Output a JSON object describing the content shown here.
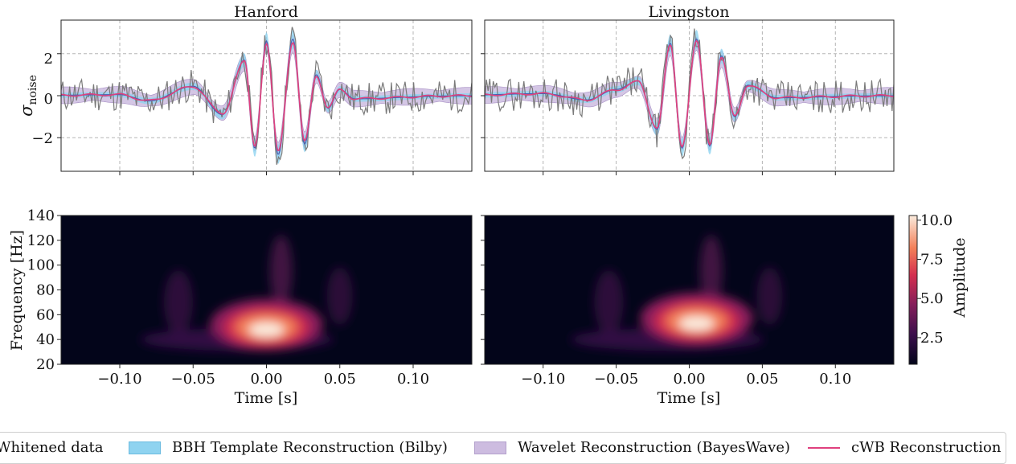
{
  "chart_data": [
    {
      "type": "line",
      "panel": "strain",
      "title": "Hanford",
      "ylabel": "σnoise",
      "xlim": [
        -0.14,
        0.14
      ],
      "ylim": [
        -3.6,
        3.6
      ],
      "yticks": [
        "2",
        "0",
        "−2"
      ],
      "grid": true,
      "peaks": [
        [
          -0.1,
          0.05
        ],
        [
          -0.08,
          -0.25
        ],
        [
          -0.05,
          0.45
        ],
        [
          -0.03,
          -0.9
        ],
        [
          -0.015,
          1.7
        ],
        [
          -0.008,
          -2.5
        ],
        [
          0.0,
          2.6
        ],
        [
          0.008,
          -2.8
        ],
        [
          0.018,
          2.7
        ],
        [
          0.026,
          -2.3
        ],
        [
          0.034,
          1.0
        ],
        [
          0.042,
          -0.6
        ],
        [
          0.05,
          0.3
        ],
        [
          0.06,
          -0.15
        ]
      ],
      "series": [
        {
          "name": "Whitened data"
        },
        {
          "name": "BBH Template Reconstruction (Bilby)"
        },
        {
          "name": "Wavelet Reconstruction (BayesWave)"
        },
        {
          "name": "cWB Reconstruction"
        }
      ]
    },
    {
      "type": "line",
      "panel": "strain",
      "title": "Livingston",
      "xlim": [
        -0.14,
        0.14
      ],
      "ylim": [
        -3.6,
        3.6
      ],
      "grid": true,
      "peaks": [
        [
          -0.1,
          0.1
        ],
        [
          -0.07,
          -0.2
        ],
        [
          -0.05,
          0.3
        ],
        [
          -0.035,
          0.7
        ],
        [
          -0.022,
          -1.6
        ],
        [
          -0.013,
          2.5
        ],
        [
          -0.005,
          -2.5
        ],
        [
          0.005,
          2.7
        ],
        [
          0.014,
          -2.4
        ],
        [
          0.022,
          1.9
        ],
        [
          0.031,
          -1.0
        ],
        [
          0.04,
          0.5
        ],
        [
          0.06,
          -0.1
        ]
      ],
      "series": [
        {
          "name": "Whitened data"
        },
        {
          "name": "BBH Template Reconstruction (Bilby)"
        },
        {
          "name": "Wavelet Reconstruction (BayesWave)"
        },
        {
          "name": "cWB Reconstruction"
        }
      ]
    },
    {
      "type": "heatmap",
      "panel": "spectrogram",
      "detector": "Hanford",
      "xlabel": "Time [s]",
      "ylabel": "Frequency [Hz]",
      "xlim": [
        -0.14,
        0.14
      ],
      "ylim": [
        20,
        140
      ],
      "xticks": [
        "−0.10",
        "−0.05",
        "0.00",
        "0.05",
        "0.10"
      ],
      "yticks": [
        "140",
        "120",
        "100",
        "80",
        "60",
        "40",
        "20"
      ],
      "peak": {
        "time": 0.0,
        "frequency": 50,
        "amplitude": 10.0
      }
    },
    {
      "type": "heatmap",
      "panel": "spectrogram",
      "detector": "Livingston",
      "xlabel": "Time [s]",
      "xlim": [
        -0.14,
        0.14
      ],
      "ylim": [
        20,
        140
      ],
      "xticks": [
        "−0.10",
        "−0.05",
        "0.00",
        "0.05",
        "0.10"
      ],
      "peak": {
        "time": 0.005,
        "frequency": 55,
        "amplitude": 10.0
      }
    }
  ],
  "colorbar": {
    "label": "Amplitude",
    "ticks": [
      "10.0",
      "7.5",
      "5.0",
      "2.5"
    ],
    "range": [
      0.8,
      10.3
    ]
  },
  "legend": {
    "placement": "bottom",
    "items": [
      {
        "label": "Whitened data",
        "color": "#7a7a7a",
        "kind": "line"
      },
      {
        "label": "BBH Template Reconstruction (Bilby)",
        "color": "#8fd3f0",
        "kind": "fill"
      },
      {
        "label": "Wavelet Reconstruction (BayesWave)",
        "color": "#cdbce0",
        "kind": "fill"
      },
      {
        "label": "cWB Reconstruction",
        "color": "#e0407e",
        "kind": "line"
      }
    ]
  },
  "colors": {
    "whitened": "#7a7a7a",
    "bilby": "#8fd3f0",
    "bayeswave": "#cdbce0",
    "cwb": "#e0407e",
    "grid": "#b5b5b5"
  }
}
